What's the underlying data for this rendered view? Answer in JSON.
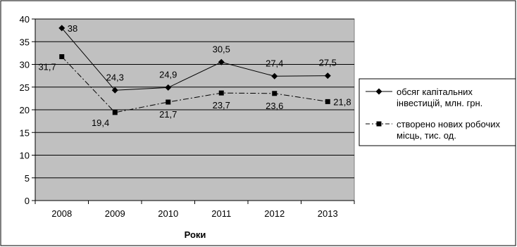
{
  "chart_data": {
    "type": "line",
    "categories": [
      "2008",
      "2009",
      "2010",
      "2011",
      "2012",
      "2013"
    ],
    "xlabel": "Роки",
    "ylim": [
      0,
      40
    ],
    "yticks": [
      "0",
      "5",
      "10",
      "15",
      "20",
      "25",
      "30",
      "35",
      "40"
    ],
    "grid": true,
    "legend_position": "right",
    "plot_background": "#c0c0c0",
    "series": [
      {
        "name_lines": [
          "обсяг капітальних",
          "інвестицій, млн. грн."
        ],
        "values": [
          38,
          24.3,
          24.9,
          30.5,
          27.4,
          27.5
        ],
        "labels": [
          "38",
          "24,3",
          "24,9",
          "30,5",
          "27,4",
          "27,5"
        ],
        "marker": "diamond",
        "line_style": "solid",
        "color": "#000000"
      },
      {
        "name_lines": [
          "створено нових робочих",
          "місць, тис. од."
        ],
        "values": [
          31.7,
          19.4,
          21.7,
          23.7,
          23.6,
          21.8
        ],
        "labels": [
          "31,7",
          "19,4",
          "21,7",
          "23,7",
          "23,6",
          "21,8"
        ],
        "marker": "square",
        "line_style": "dash-dot",
        "color": "#000000"
      }
    ]
  }
}
